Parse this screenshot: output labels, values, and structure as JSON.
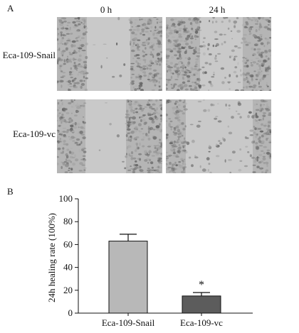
{
  "panel_a": {
    "label": "A",
    "columns": [
      "0 h",
      "24 h"
    ],
    "rows": [
      "Eca-109-Snail",
      "Eca-109-vc"
    ]
  },
  "panel_b": {
    "label": "B"
  },
  "colors": {
    "bar_snail": "#b8b8b8",
    "bar_vc": "#5c5c5c",
    "micro_bg": "#b5b5b5",
    "micro_wound": "#c9c9c9"
  },
  "chart_data": {
    "type": "bar",
    "categories": [
      "Eca-109-Snail",
      "Eca-109-vc"
    ],
    "values": [
      63,
      15
    ],
    "error": [
      6,
      3
    ],
    "ylabel": "24h healing rate (100%)",
    "xlabel": "",
    "ylim": [
      0,
      100
    ],
    "yticks": [
      0,
      20,
      40,
      60,
      80,
      100
    ],
    "annotations": [
      {
        "category": "Eca-109-vc",
        "text": "*"
      }
    ],
    "grid": false,
    "legend": "none"
  }
}
